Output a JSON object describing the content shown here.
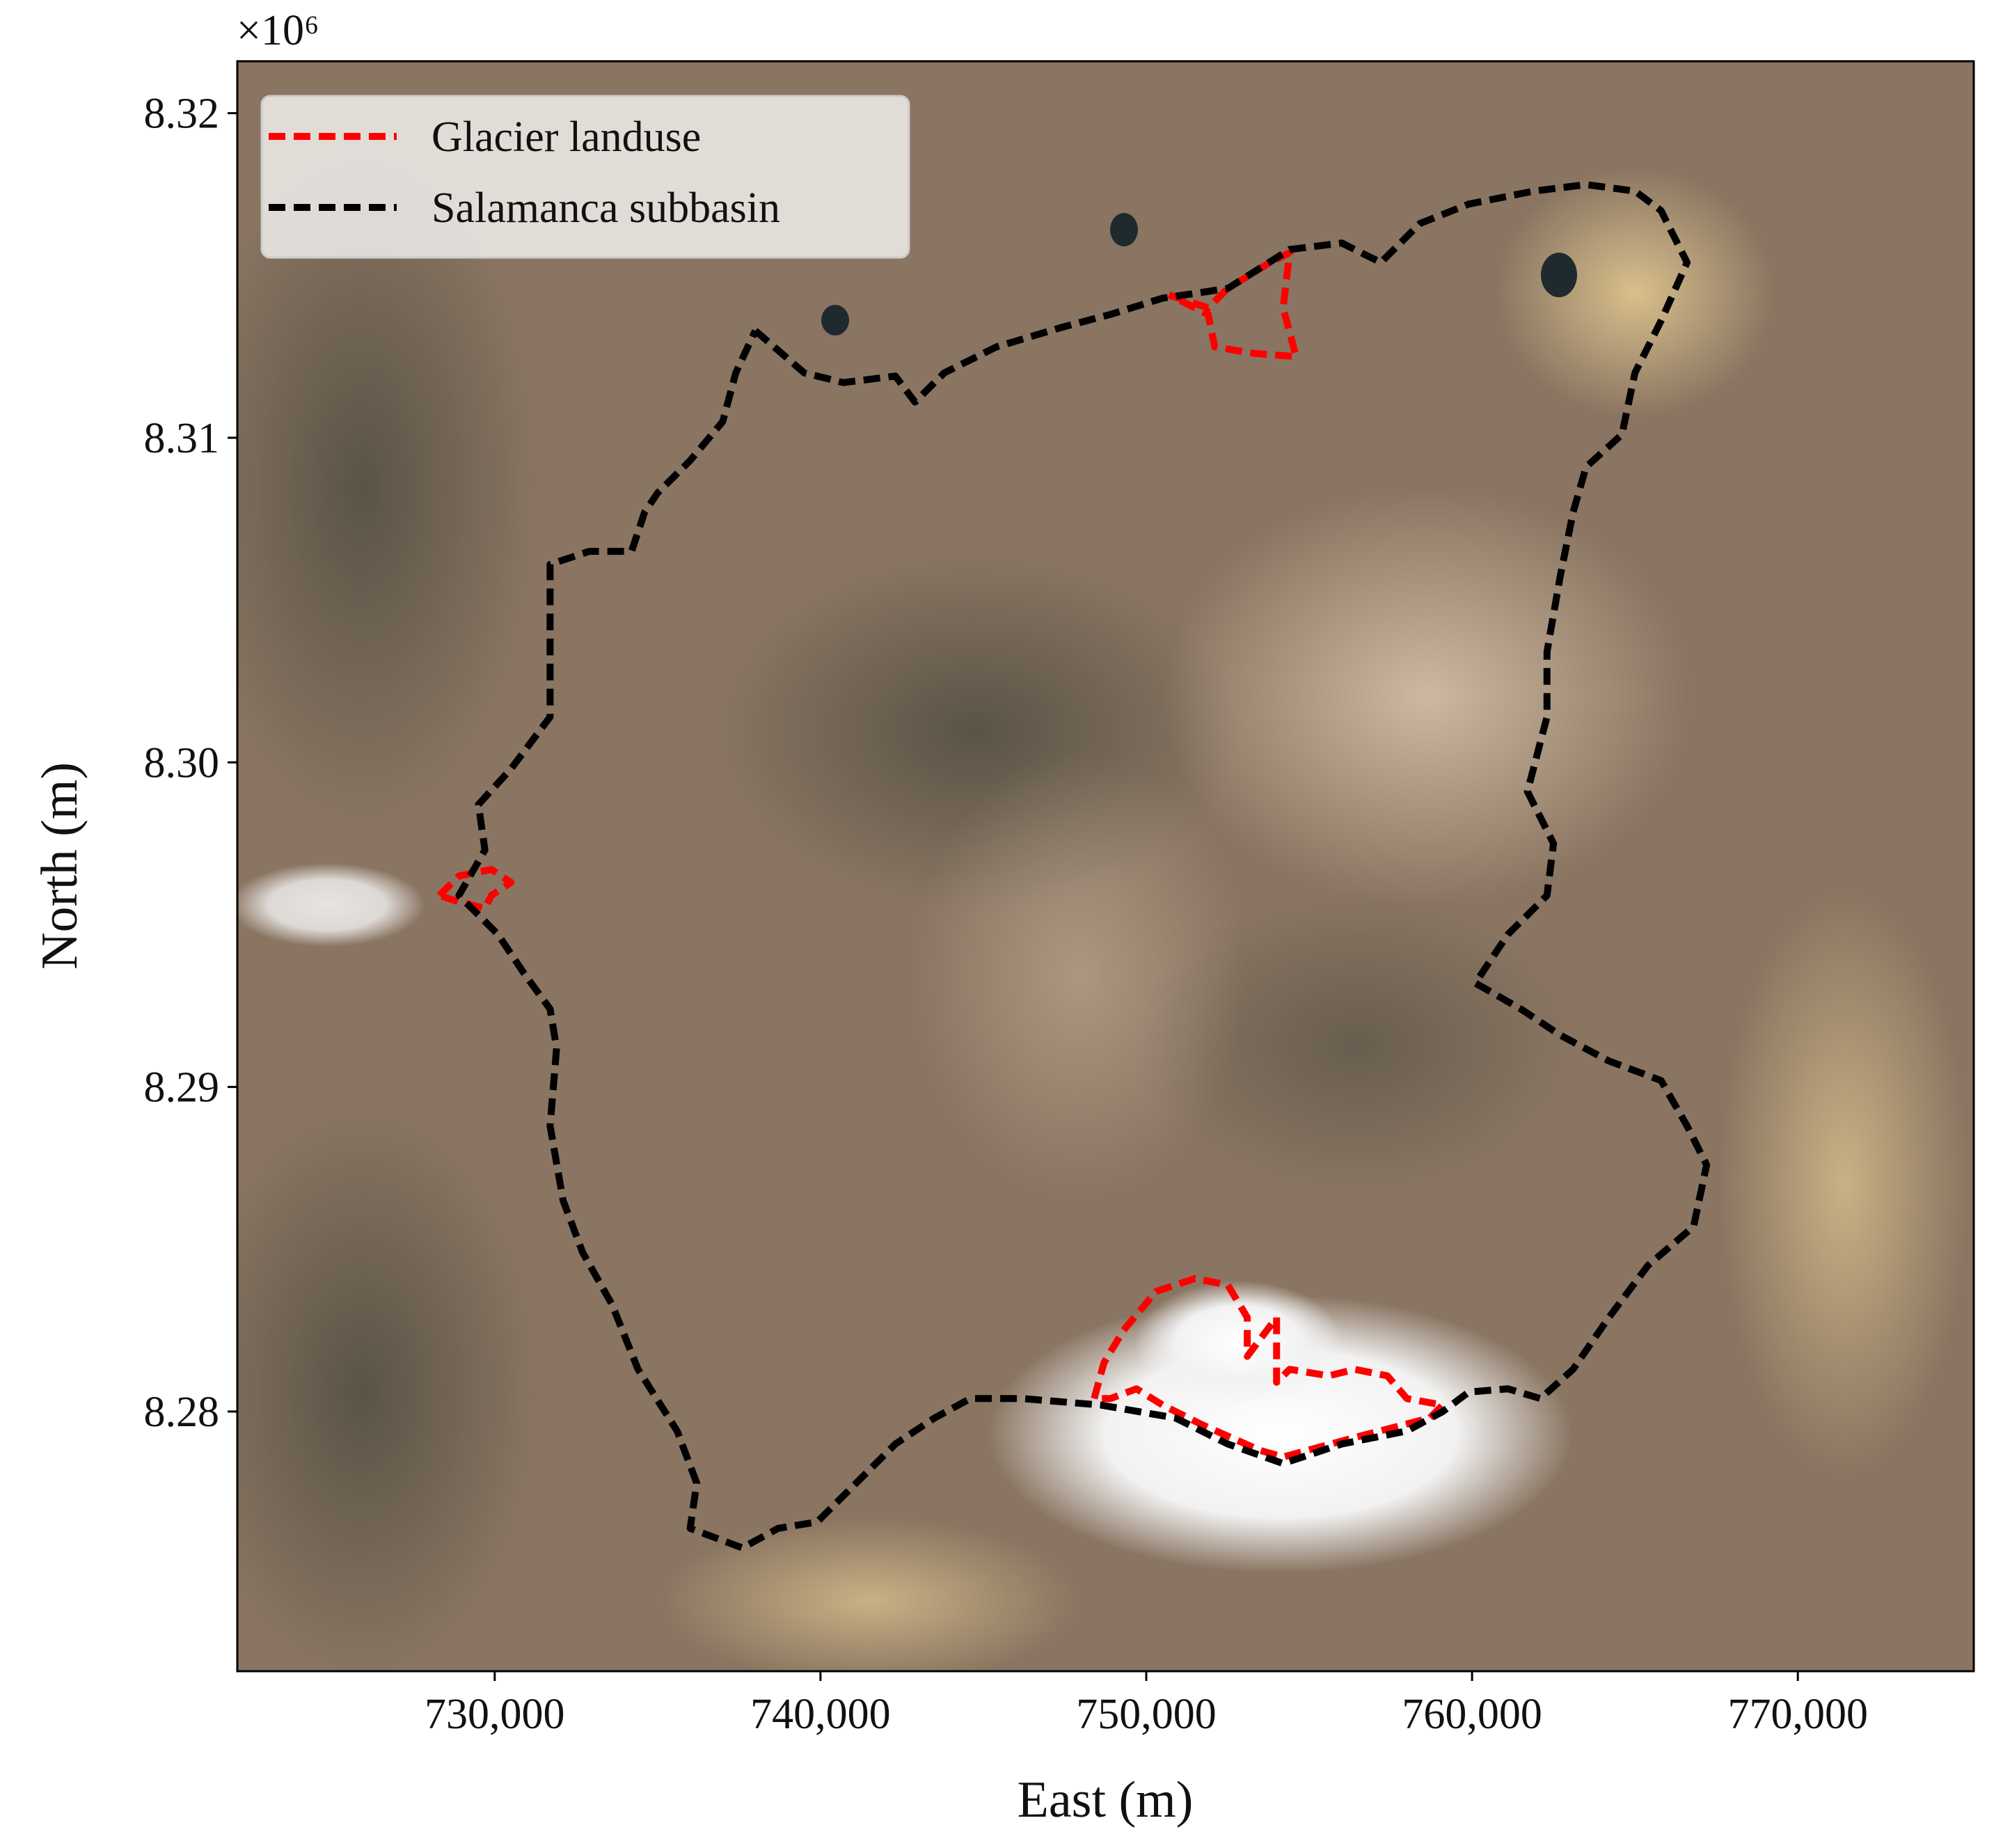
{
  "chart_data": {
    "type": "map",
    "x_label": "East (m)",
    "y_label": "North (m)",
    "y_offset_label": "×10⁶",
    "xlim": [
      722100,
      775400
    ],
    "ylim": [
      8272000,
      8321600
    ],
    "xticks": [
      {
        "value": 730000,
        "label": "730,000"
      },
      {
        "value": 740000,
        "label": "740,000"
      },
      {
        "value": 750000,
        "label": "750,000"
      },
      {
        "value": 760000,
        "label": "760,000"
      },
      {
        "value": 770000,
        "label": "770,000"
      }
    ],
    "yticks": [
      {
        "value": 8280000,
        "label": "8.28"
      },
      {
        "value": 8290000,
        "label": "8.29"
      },
      {
        "value": 8300000,
        "label": "8.30"
      },
      {
        "value": 8310000,
        "label": "8.31"
      },
      {
        "value": 8320000,
        "label": "8.32"
      }
    ],
    "legend": "upper left",
    "linestyle": "dashed",
    "series": [
      {
        "name": "Glacier landuse",
        "color": "#ff0000",
        "x": [
          750700,
          751900,
          752500,
          753800,
          754400,
          754200,
          754600,
          753300,
          752100,
          751900,
          750700,
          null,
          728300,
          728900,
          729900,
          730500,
          729900,
          729700,
          728900,
          728300,
          null,
          748400,
          748700,
          749300,
          750300,
          751500,
          752500,
          753100,
          753100,
          754000,
          754000,
          754400,
          755600,
          756400,
          757400,
          758000,
          759100,
          758700,
          756400,
          754200,
          753500,
          751700,
          750500,
          749700,
          748900,
          748400
        ],
        "values": [
          8314400,
          8314000,
          8314600,
          8315400,
          8315700,
          8314000,
          8312500,
          8312600,
          8312800,
          8313800,
          8314400,
          null,
          8295900,
          8296500,
          8296700,
          8296300,
          8295900,
          8295500,
          8295700,
          8295900,
          null,
          8280400,
          8281500,
          8282500,
          8283700,
          8284100,
          8283900,
          8282900,
          8281700,
          8282900,
          8280900,
          8281300,
          8281100,
          8281300,
          8281100,
          8280400,
          8280200,
          8279800,
          8279200,
          8278600,
          8278800,
          8279600,
          8280200,
          8280700,
          8280400,
          8280400
        ]
      },
      {
        "name": "Salamanca subbasin",
        "color": "#000000",
        "x": [
          738000,
          739500,
          740700,
          742300,
          742900,
          743800,
          745400,
          747400,
          748900,
          750500,
          752500,
          754400,
          756000,
          757200,
          758400,
          759900,
          761900,
          763500,
          765000,
          765800,
          766600,
          765800,
          765000,
          764600,
          763500,
          763100,
          762700,
          762300,
          762300,
          761700,
          762500,
          762300,
          761100,
          760100,
          761500,
          762700,
          764200,
          765800,
          766600,
          767200,
          766800,
          765400,
          764200,
          763100,
          762100,
          761100,
          759900,
          759100,
          758000,
          756000,
          754200,
          752500,
          750900,
          748600,
          746200,
          744600,
          743500,
          742300,
          741100,
          739900,
          738700,
          737600,
          736000,
          736200,
          735600,
          734400,
          733600,
          732700,
          732100,
          731700,
          731900,
          731700,
          730900,
          730100,
          728900,
          729700,
          729500,
          730500,
          731700,
          731700,
          731700,
          732900,
          734200,
          734600,
          735000,
          736000,
          737000,
          737400,
          738000
        ],
        "values": [
          8313300,
          8312000,
          8311700,
          8311900,
          8311100,
          8312000,
          8312800,
          8313400,
          8313800,
          8314300,
          8314600,
          8315800,
          8316000,
          8315400,
          8316600,
          8317200,
          8317600,
          8317800,
          8317600,
          8317000,
          8315400,
          8313600,
          8312000,
          8310100,
          8309100,
          8307700,
          8305700,
          8303400,
          8301400,
          8299100,
          8297500,
          8295900,
          8294700,
          8293200,
          8292400,
          8291600,
          8290800,
          8290200,
          8288800,
          8287600,
          8285700,
          8284500,
          8282900,
          8281300,
          8280400,
          8280700,
          8280600,
          8280000,
          8279400,
          8279000,
          8278400,
          8279000,
          8279800,
          8280200,
          8280400,
          8280400,
          8279800,
          8279000,
          8277800,
          8276600,
          8276400,
          8275800,
          8276400,
          8277800,
          8279400,
          8281300,
          8283300,
          8284900,
          8286500,
          8288800,
          8291200,
          8292400,
          8293500,
          8294700,
          8295900,
          8297300,
          8298700,
          8299800,
          8301400,
          8303800,
          8306100,
          8306500,
          8306500,
          8307700,
          8308300,
          8309300,
          8310500,
          8312000,
          8313300
        ]
      }
    ]
  }
}
